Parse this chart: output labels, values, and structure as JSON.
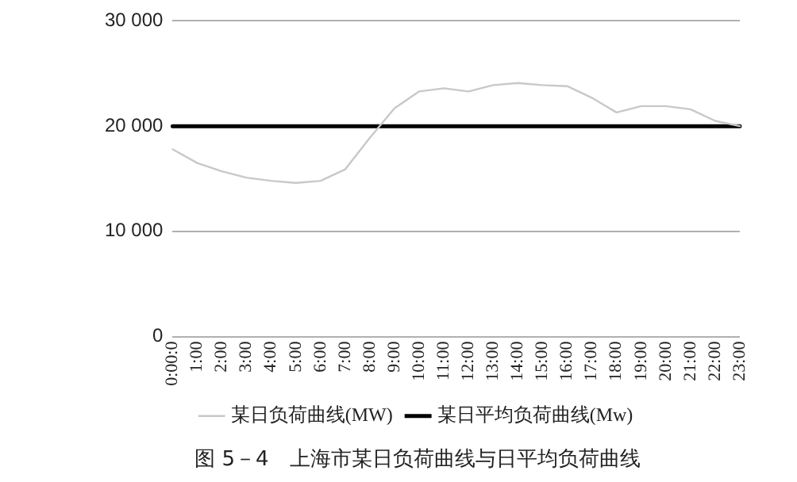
{
  "chart_data": {
    "type": "line",
    "title": "图 5－4　上海市某日负荷曲线与日平均负荷曲线",
    "categories": [
      "0:00:0",
      "1:00",
      "2:00",
      "3:00",
      "4:00",
      "5:00",
      "6:00",
      "7:00",
      "8:00",
      "9:00",
      "10:00",
      "11:00",
      "12:00",
      "13:00",
      "14:00",
      "15:00",
      "16:00",
      "17:00",
      "18:00",
      "19:00",
      "20:00",
      "21:00",
      "22:00",
      "23:00"
    ],
    "series": [
      {
        "name": "某日负荷曲线(MW)",
        "color": "#c8c8c8",
        "values": [
          17800,
          16500,
          15700,
          15100,
          14800,
          14600,
          14800,
          15900,
          18900,
          21700,
          23300,
          23600,
          23300,
          23900,
          24100,
          23900,
          23800,
          22700,
          21300,
          21900,
          21900,
          21600,
          20500,
          20000
        ]
      },
      {
        "name": "某日平均负荷曲线(Mw)",
        "color": "#000000",
        "values": [
          20000,
          20000,
          20000,
          20000,
          20000,
          20000,
          20000,
          20000,
          20000,
          20000,
          20000,
          20000,
          20000,
          20000,
          20000,
          20000,
          20000,
          20000,
          20000,
          20000,
          20000,
          20000,
          20000,
          20000
        ]
      }
    ],
    "ylim": [
      0,
      30000
    ],
    "yticks": [
      0,
      {
        "value": 10000,
        "label": "10 000"
      },
      {
        "value": 20000,
        "label": "20 000"
      },
      {
        "value": 30000,
        "label": "30 000"
      }
    ],
    "grid": "y",
    "legend": "bottom",
    "marker": "none",
    "line_style": "solid"
  }
}
